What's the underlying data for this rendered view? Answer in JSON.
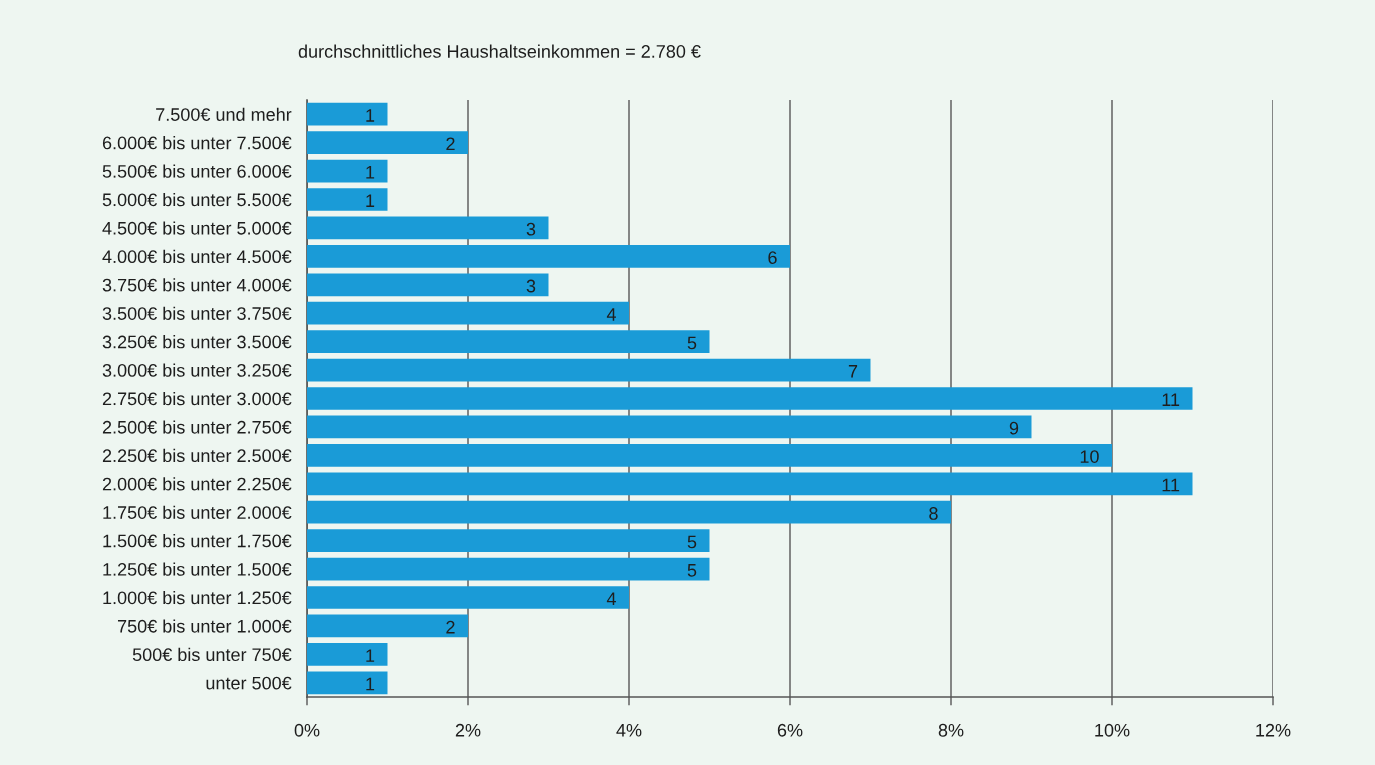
{
  "chart_data": {
    "type": "bar",
    "orientation": "horizontal",
    "title": "durchschnittliches Haushaltseinkommen = 2.780 €",
    "categories": [
      "7.500€ und mehr",
      "6.000€ bis unter 7.500€",
      "5.500€ bis unter 6.000€",
      "5.000€ bis unter 5.500€",
      "4.500€ bis unter 5.000€",
      "4.000€ bis unter 4.500€",
      "3.750€ bis unter 4.000€",
      "3.500€ bis unter 3.750€",
      "3.250€ bis unter 3.500€",
      "3.000€ bis unter 3.250€",
      "2.750€ bis unter 3.000€",
      "2.500€ bis unter 2.750€",
      "2.250€ bis unter 2.500€",
      "2.000€ bis unter 2.250€",
      "1.750€ bis unter 2.000€",
      "1.500€ bis unter 1.750€",
      "1.250€ bis unter 1.500€",
      "1.000€ bis unter 1.250€",
      "750€ bis unter 1.000€",
      "500€ bis unter 750€",
      "unter 500€"
    ],
    "values": [
      1,
      2,
      1,
      1,
      3,
      6,
      3,
      4,
      5,
      7,
      11,
      9,
      10,
      11,
      8,
      5,
      5,
      4,
      2,
      1,
      1
    ],
    "color": "#1a9bd7",
    "xlim": [
      0,
      12
    ],
    "xticks": [
      {
        "value": 0,
        "label": "0%"
      },
      {
        "value": 2,
        "label": "2%"
      },
      {
        "value": 4,
        "label": "4%"
      },
      {
        "value": 6,
        "label": "6%"
      },
      {
        "value": 8,
        "label": "8%"
      },
      {
        "value": 10,
        "label": "10%"
      },
      {
        "value": 12,
        "label": "12%"
      }
    ],
    "grid": "x",
    "data_labels": true
  }
}
